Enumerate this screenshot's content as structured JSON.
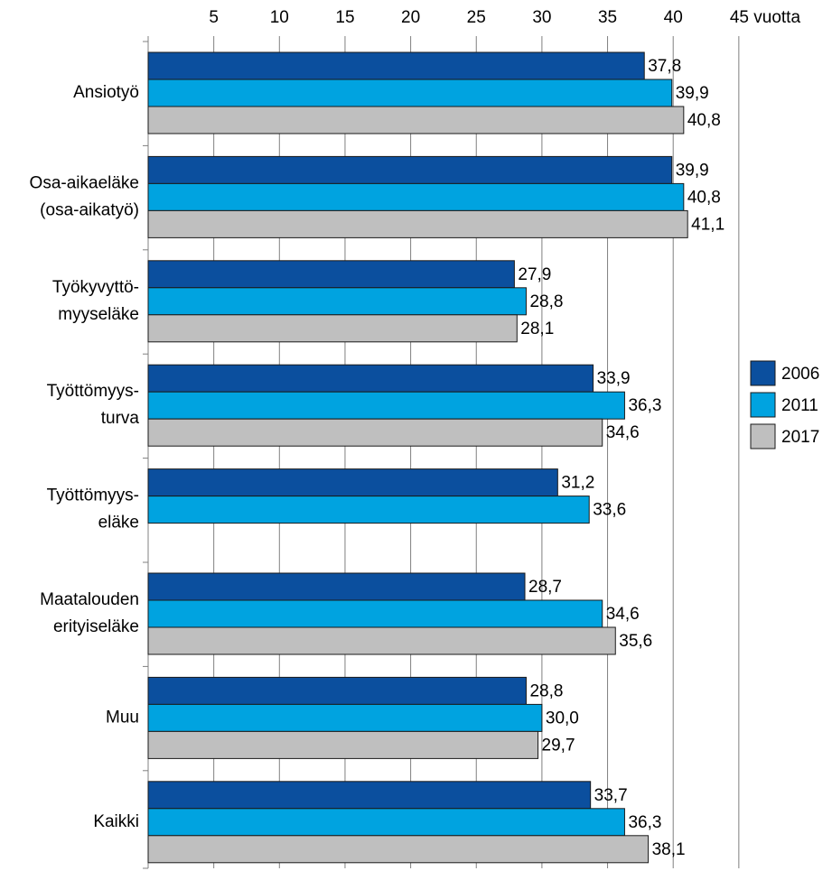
{
  "chart_data": {
    "type": "bar",
    "orientation": "horizontal",
    "categories": [
      [
        "Ansiotyö"
      ],
      [
        "Osa-aikaeläke",
        "(osa-aikatyö)"
      ],
      [
        "Työkyvyttö-",
        "myyseläke"
      ],
      [
        "Työttömyys-",
        "turva"
      ],
      [
        "Työttömyys-",
        "eläke"
      ],
      [
        "Maatalouden",
        "erityiseläke"
      ],
      [
        "Muu"
      ],
      [
        "Kaikki"
      ]
    ],
    "series": [
      {
        "name": "2006",
        "color": "#0b4f9e",
        "values": [
          37.8,
          39.9,
          27.9,
          33.9,
          31.2,
          28.7,
          28.8,
          33.7
        ],
        "value_labels": [
          "37,8",
          "39,9",
          "27,9",
          "33,9",
          "31,2",
          "28,7",
          "28,8",
          "33,7"
        ]
      },
      {
        "name": "2011",
        "color": "#00a3e0",
        "values": [
          39.9,
          40.8,
          28.8,
          36.3,
          33.6,
          34.6,
          30.0,
          36.3
        ],
        "value_labels": [
          "39,9",
          "40,8",
          "28,8",
          "36,3",
          "33,6",
          "34,6",
          "30,0",
          "36,3"
        ]
      },
      {
        "name": "2017",
        "color": "#bfbfbf",
        "values": [
          40.8,
          41.1,
          28.1,
          34.6,
          null,
          35.6,
          29.7,
          38.1
        ],
        "value_labels": [
          "40,8",
          "41,1",
          "28,1",
          "34,6",
          null,
          "35,6",
          "29,7",
          "38,1"
        ]
      }
    ],
    "xlim": [
      0,
      45
    ],
    "xticks": [
      5,
      10,
      15,
      20,
      25,
      30,
      35,
      40,
      {
        "value": 45,
        "label": "45 vuotta"
      }
    ],
    "grid": true,
    "legend": "right"
  }
}
